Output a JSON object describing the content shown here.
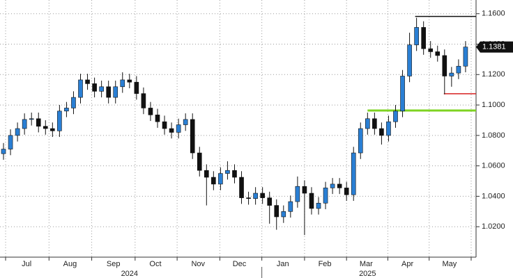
{
  "chart_data": {
    "type": "candlestick",
    "up_color": "#2a7fd4",
    "down_color": "#111111",
    "xlim": [
      0,
      68
    ],
    "ylim": [
      1.0,
      1.169
    ],
    "yticks": [
      {
        "value": 1.02,
        "label": "1.0200"
      },
      {
        "value": 1.04,
        "label": "1.0400"
      },
      {
        "value": 1.06,
        "label": "1.0600"
      },
      {
        "value": 1.08,
        "label": "1.0800"
      },
      {
        "value": 1.1,
        "label": "1.1000"
      },
      {
        "value": 1.12,
        "label": "1.1200"
      },
      {
        "value": 1.14,
        "label": "1.1400"
      },
      {
        "value": 1.16,
        "label": "1.1600"
      }
    ],
    "xgrid": [
      0.8,
      7.0,
      13.1,
      19.3,
      25.3,
      31.4,
      37.4,
      43.5,
      49.5,
      55.4,
      61.3,
      67.3
    ],
    "xticks": [
      {
        "value": 3.8,
        "label": "Jul"
      },
      {
        "value": 10.0,
        "label": "Aug"
      },
      {
        "value": 16.2,
        "label": "Sep"
      },
      {
        "value": 22.2,
        "label": "Oct"
      },
      {
        "value": 28.3,
        "label": "Nov"
      },
      {
        "value": 34.2,
        "label": "Dec"
      },
      {
        "value": 40.4,
        "label": "Jan"
      },
      {
        "value": 46.4,
        "label": "Feb"
      },
      {
        "value": 52.3,
        "label": "Mar"
      },
      {
        "value": 58.2,
        "label": "Apr"
      },
      {
        "value": 64.2,
        "label": "May"
      }
    ],
    "years": [
      {
        "value": 18.5,
        "label": "2024"
      },
      {
        "value": 52.5,
        "label": "2025"
      }
    ],
    "grid": true,
    "levels": [
      {
        "value": 1.1582,
        "start": 59.3,
        "color": "#111111"
      },
      {
        "value": 1.1074,
        "start": 63.4,
        "color": "#d62020"
      },
      {
        "value": 1.0964,
        "start": 52.5,
        "color": "#7ed321"
      }
    ],
    "candles": {
      "open": [
        1.068,
        1.071,
        1.08,
        1.0845,
        1.0905,
        1.091,
        1.086,
        1.0845,
        1.083,
        1.096,
        1.098,
        1.105,
        1.1165,
        1.114,
        1.109,
        1.112,
        1.105,
        1.112,
        1.1165,
        1.115,
        1.1075,
        1.098,
        1.0935,
        1.089,
        1.0845,
        1.082,
        1.087,
        1.0905,
        1.0685,
        1.057,
        1.0525,
        1.048,
        1.055,
        1.057,
        1.0525,
        1.039,
        1.0385,
        1.042,
        1.039,
        1.034,
        1.0265,
        1.03,
        1.0365,
        1.0465,
        1.042,
        1.032,
        1.0355,
        1.0455,
        1.048,
        1.0455,
        1.041,
        1.0685,
        1.0845,
        1.091,
        1.0845,
        1.08,
        1.089,
        1.096,
        1.119,
        1.1395,
        1.151,
        1.137,
        1.135,
        1.1325,
        1.119,
        1.121,
        1.1255
      ],
      "high": [
        1.075,
        1.084,
        1.0885,
        1.0945,
        1.095,
        1.095,
        1.09,
        1.0885,
        1.1,
        1.102,
        1.109,
        1.1205,
        1.1205,
        1.118,
        1.116,
        1.116,
        1.116,
        1.1215,
        1.1205,
        1.119,
        1.1115,
        1.102,
        1.0975,
        1.093,
        1.0885,
        1.091,
        1.0945,
        1.0945,
        1.0725,
        1.061,
        1.0565,
        1.059,
        1.063,
        1.061,
        1.0565,
        1.043,
        1.046,
        1.046,
        1.043,
        1.038,
        1.034,
        1.0405,
        1.053,
        1.0505,
        1.046,
        1.0395,
        1.0495,
        1.052,
        1.052,
        1.0495,
        1.0725,
        1.0885,
        1.095,
        1.095,
        1.0885,
        1.093,
        1.1,
        1.123,
        1.1475,
        1.1573,
        1.155,
        1.142,
        1.139,
        1.1365,
        1.125,
        1.13,
        1.142
      ],
      "low": [
        1.064,
        1.067,
        1.076,
        1.0805,
        1.0865,
        1.082,
        1.0805,
        1.079,
        1.079,
        1.092,
        1.094,
        1.101,
        1.11,
        1.105,
        1.105,
        1.101,
        1.101,
        1.108,
        1.111,
        1.1035,
        1.094,
        1.0895,
        1.085,
        1.0805,
        1.078,
        1.078,
        1.083,
        1.0645,
        1.053,
        1.034,
        1.044,
        1.044,
        1.051,
        1.0485,
        1.035,
        1.0345,
        1.0345,
        1.035,
        1.022,
        1.018,
        1.0225,
        1.026,
        1.0325,
        1.0145,
        1.028,
        1.028,
        1.0315,
        1.0415,
        1.0415,
        1.037,
        1.037,
        1.0645,
        1.0805,
        1.0805,
        1.074,
        1.076,
        1.085,
        1.092,
        1.115,
        1.1355,
        1.133,
        1.131,
        1.1285,
        1.107,
        1.112,
        1.117,
        1.1215
      ],
      "close": [
        1.071,
        1.08,
        1.0845,
        1.0905,
        1.091,
        1.086,
        1.0845,
        1.083,
        1.096,
        1.098,
        1.105,
        1.1165,
        1.114,
        1.109,
        1.112,
        1.105,
        1.112,
        1.1165,
        1.115,
        1.1075,
        1.098,
        1.0935,
        1.089,
        1.0845,
        1.082,
        1.087,
        1.0905,
        1.0685,
        1.057,
        1.0525,
        1.048,
        1.055,
        1.057,
        1.0525,
        1.039,
        1.0385,
        1.042,
        1.039,
        1.034,
        1.0265,
        1.03,
        1.0365,
        1.0465,
        1.042,
        1.032,
        1.0355,
        1.0455,
        1.048,
        1.0455,
        1.041,
        1.0685,
        1.0845,
        1.091,
        1.0845,
        1.08,
        1.089,
        1.096,
        1.119,
        1.1395,
        1.151,
        1.137,
        1.135,
        1.1325,
        1.119,
        1.121,
        1.1255,
        1.1381
      ]
    }
  }
}
